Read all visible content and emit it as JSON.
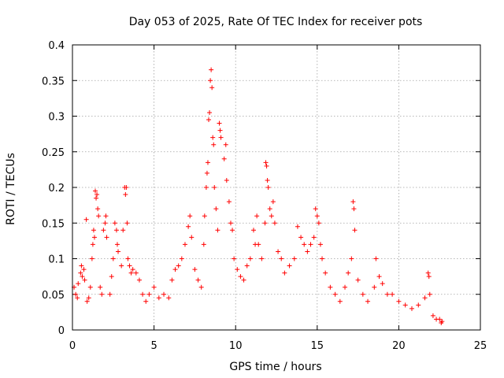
{
  "chart_data": {
    "type": "scatter",
    "title": "Day 053 of 2025, Rate Of TEC Index for receiver pots",
    "xlabel": "GPS time / hours",
    "ylabel": "ROTI / TECUs",
    "xlim": [
      0,
      25
    ],
    "ylim": [
      0,
      0.4
    ],
    "x_ticks": [
      0,
      5,
      10,
      15,
      20,
      25
    ],
    "x_tick_labels": [
      "0",
      "5",
      "10",
      "15",
      "20",
      "25"
    ],
    "y_ticks": [
      0,
      0.05,
      0.1,
      0.15,
      0.2,
      0.25,
      0.3,
      0.35,
      0.4
    ],
    "y_tick_labels": [
      "0",
      "0.05",
      "0.1",
      "0.15",
      "0.2",
      "0.25",
      "0.3",
      "0.35",
      "0.4"
    ],
    "grid": true,
    "marker": "+",
    "color": "#ff0000",
    "series": [
      {
        "points": [
          [
            0.1,
            0.06
          ],
          [
            0.2,
            0.05
          ],
          [
            0.3,
            0.045
          ],
          [
            0.35,
            0.065
          ],
          [
            0.5,
            0.08
          ],
          [
            0.55,
            0.09
          ],
          [
            0.6,
            0.075
          ],
          [
            0.7,
            0.085
          ],
          [
            0.75,
            0.07
          ],
          [
            0.9,
            0.04
          ],
          [
            1.0,
            0.045
          ],
          [
            0.85,
            0.155
          ],
          [
            1.1,
            0.06
          ],
          [
            1.2,
            0.1
          ],
          [
            1.25,
            0.12
          ],
          [
            1.3,
            0.14
          ],
          [
            1.35,
            0.13
          ],
          [
            1.4,
            0.195
          ],
          [
            1.45,
            0.185
          ],
          [
            1.5,
            0.19
          ],
          [
            1.55,
            0.17
          ],
          [
            1.6,
            0.16
          ],
          [
            1.7,
            0.06
          ],
          [
            1.8,
            0.05
          ],
          [
            1.9,
            0.14
          ],
          [
            2.0,
            0.15
          ],
          [
            2.05,
            0.16
          ],
          [
            2.1,
            0.13
          ],
          [
            2.3,
            0.05
          ],
          [
            2.4,
            0.075
          ],
          [
            2.5,
            0.1
          ],
          [
            2.6,
            0.15
          ],
          [
            2.7,
            0.14
          ],
          [
            2.75,
            0.12
          ],
          [
            2.8,
            0.11
          ],
          [
            3.0,
            0.09
          ],
          [
            3.1,
            0.14
          ],
          [
            3.2,
            0.2
          ],
          [
            3.25,
            0.19
          ],
          [
            3.3,
            0.2
          ],
          [
            3.35,
            0.15
          ],
          [
            3.4,
            0.1
          ],
          [
            3.5,
            0.09
          ],
          [
            3.6,
            0.08
          ],
          [
            3.7,
            0.085
          ],
          [
            3.9,
            0.08
          ],
          [
            4.1,
            0.07
          ],
          [
            4.3,
            0.05
          ],
          [
            4.5,
            0.04
          ],
          [
            4.7,
            0.05
          ],
          [
            5.0,
            0.06
          ],
          [
            5.3,
            0.045
          ],
          [
            5.6,
            0.05
          ],
          [
            5.9,
            0.045
          ],
          [
            6.1,
            0.07
          ],
          [
            6.3,
            0.085
          ],
          [
            6.5,
            0.09
          ],
          [
            6.7,
            0.1
          ],
          [
            6.9,
            0.12
          ],
          [
            7.1,
            0.145
          ],
          [
            7.2,
            0.16
          ],
          [
            7.3,
            0.13
          ],
          [
            7.5,
            0.085
          ],
          [
            7.7,
            0.07
          ],
          [
            7.9,
            0.06
          ],
          [
            8.05,
            0.12
          ],
          [
            8.1,
            0.16
          ],
          [
            8.2,
            0.2
          ],
          [
            8.25,
            0.22
          ],
          [
            8.3,
            0.235
          ],
          [
            8.35,
            0.295
          ],
          [
            8.4,
            0.305
          ],
          [
            8.45,
            0.35
          ],
          [
            8.5,
            0.365
          ],
          [
            8.55,
            0.34
          ],
          [
            8.6,
            0.27
          ],
          [
            8.65,
            0.26
          ],
          [
            8.7,
            0.2
          ],
          [
            8.8,
            0.17
          ],
          [
            8.9,
            0.14
          ],
          [
            9.0,
            0.29
          ],
          [
            9.05,
            0.28
          ],
          [
            9.1,
            0.27
          ],
          [
            9.3,
            0.24
          ],
          [
            9.4,
            0.26
          ],
          [
            9.45,
            0.21
          ],
          [
            9.6,
            0.18
          ],
          [
            9.7,
            0.15
          ],
          [
            9.8,
            0.14
          ],
          [
            9.9,
            0.1
          ],
          [
            10.1,
            0.085
          ],
          [
            10.3,
            0.075
          ],
          [
            10.5,
            0.07
          ],
          [
            10.7,
            0.09
          ],
          [
            10.9,
            0.1
          ],
          [
            11.1,
            0.14
          ],
          [
            11.2,
            0.12
          ],
          [
            11.3,
            0.16
          ],
          [
            11.4,
            0.12
          ],
          [
            11.6,
            0.1
          ],
          [
            11.8,
            0.15
          ],
          [
            11.85,
            0.235
          ],
          [
            11.9,
            0.23
          ],
          [
            11.95,
            0.21
          ],
          [
            12.0,
            0.2
          ],
          [
            12.1,
            0.17
          ],
          [
            12.2,
            0.16
          ],
          [
            12.3,
            0.18
          ],
          [
            12.4,
            0.15
          ],
          [
            12.6,
            0.11
          ],
          [
            12.8,
            0.1
          ],
          [
            13.0,
            0.08
          ],
          [
            13.3,
            0.09
          ],
          [
            13.6,
            0.1
          ],
          [
            13.8,
            0.145
          ],
          [
            14.0,
            0.13
          ],
          [
            14.2,
            0.12
          ],
          [
            14.4,
            0.11
          ],
          [
            14.6,
            0.12
          ],
          [
            14.8,
            0.13
          ],
          [
            14.9,
            0.17
          ],
          [
            15.0,
            0.16
          ],
          [
            15.1,
            0.15
          ],
          [
            15.2,
            0.12
          ],
          [
            15.3,
            0.1
          ],
          [
            15.5,
            0.08
          ],
          [
            15.8,
            0.06
          ],
          [
            16.1,
            0.05
          ],
          [
            16.4,
            0.04
          ],
          [
            16.7,
            0.06
          ],
          [
            16.9,
            0.08
          ],
          [
            17.1,
            0.1
          ],
          [
            17.2,
            0.18
          ],
          [
            17.25,
            0.17
          ],
          [
            17.3,
            0.14
          ],
          [
            17.5,
            0.07
          ],
          [
            17.8,
            0.05
          ],
          [
            18.1,
            0.04
          ],
          [
            18.5,
            0.06
          ],
          [
            18.6,
            0.1
          ],
          [
            18.8,
            0.075
          ],
          [
            19.0,
            0.065
          ],
          [
            19.3,
            0.05
          ],
          [
            19.6,
            0.05
          ],
          [
            20.0,
            0.04
          ],
          [
            20.4,
            0.035
          ],
          [
            20.8,
            0.03
          ],
          [
            21.2,
            0.035
          ],
          [
            21.6,
            0.045
          ],
          [
            21.8,
            0.08
          ],
          [
            21.85,
            0.075
          ],
          [
            21.9,
            0.05
          ],
          [
            22.1,
            0.02
          ],
          [
            22.3,
            0.015
          ],
          [
            22.5,
            0.015
          ],
          [
            22.6,
            0.01
          ],
          [
            22.65,
            0.012
          ]
        ]
      }
    ]
  }
}
